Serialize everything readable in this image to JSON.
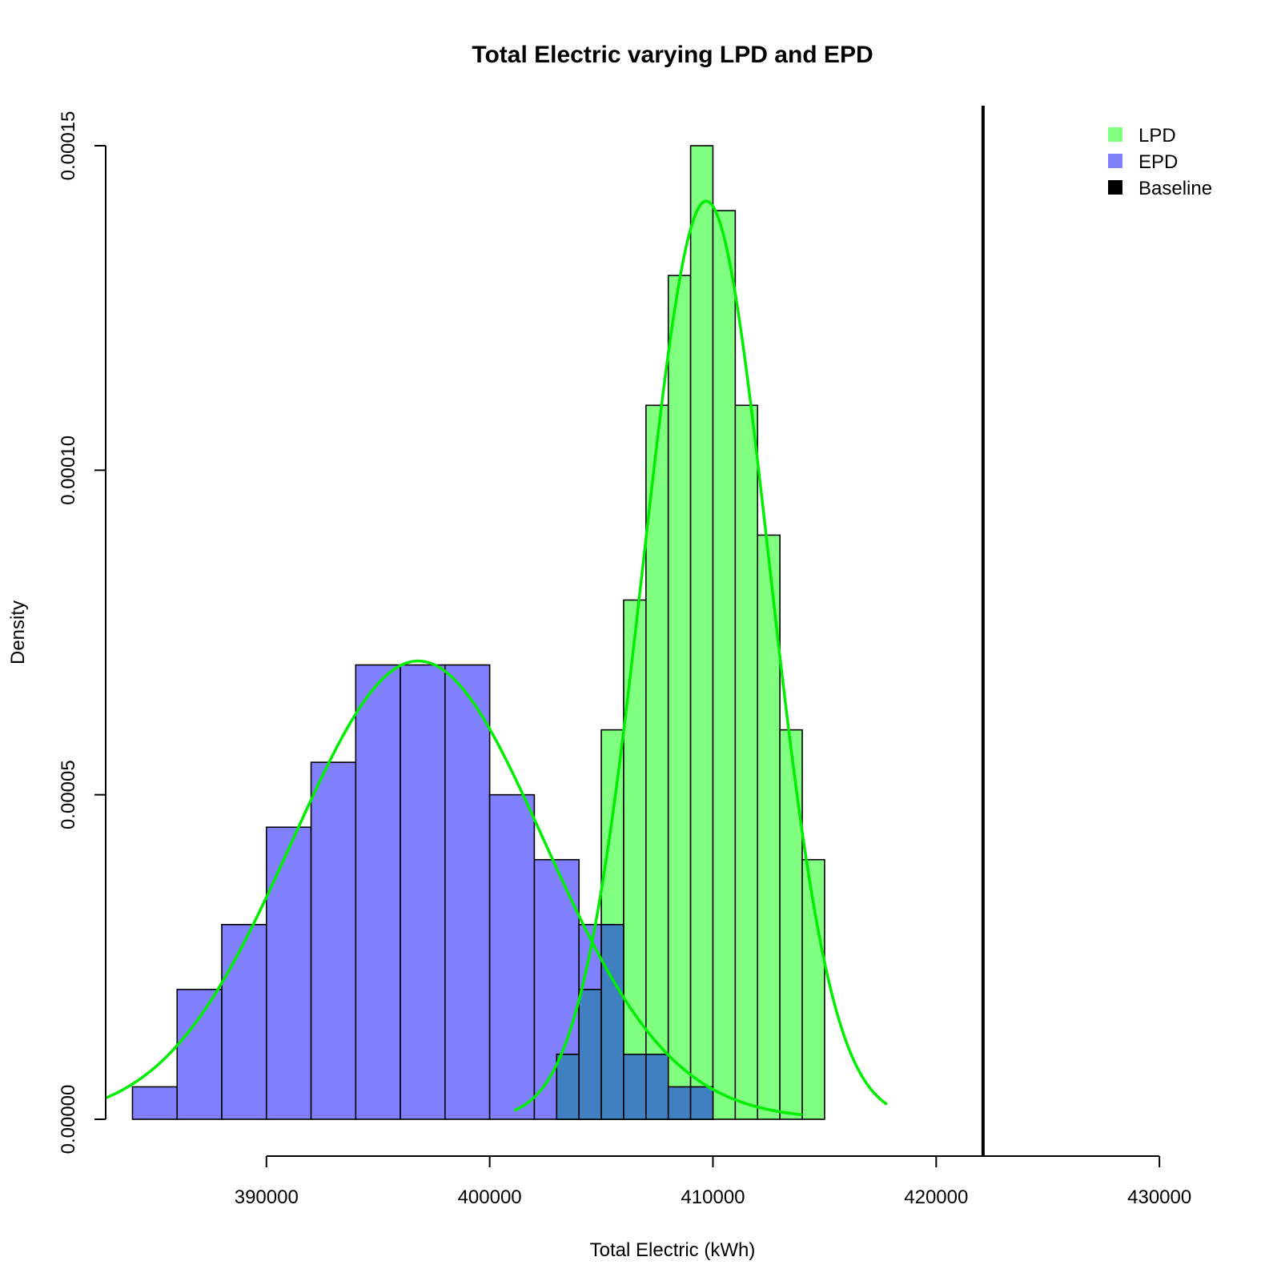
{
  "chart_data": {
    "type": "histogram",
    "title": "Total Electric varying LPD and EPD",
    "xlabel": "Total Electric (kWh)",
    "ylabel": "Density",
    "xlim": [
      382800,
      431500
    ],
    "ylim": [
      0,
      0.00015
    ],
    "x_ticks": [
      390000,
      400000,
      410000,
      420000,
      430000
    ],
    "x_tick_labels": [
      "390000",
      "400000",
      "410000",
      "420000",
      "430000"
    ],
    "y_ticks": [
      0,
      5e-05,
      0.0001,
      0.00015
    ],
    "y_tick_labels": [
      "0.00000",
      "0.00005",
      "0.00010",
      "0.00015"
    ],
    "bin_width": 2000,
    "series": [
      {
        "name": "EPD",
        "color": "#8080ff",
        "bins": [
          {
            "x0": 384000,
            "x1": 386000,
            "density": 5e-06
          },
          {
            "x0": 386000,
            "x1": 388000,
            "density": 2e-05
          },
          {
            "x0": 388000,
            "x1": 390000,
            "density": 3e-05
          },
          {
            "x0": 390000,
            "x1": 392000,
            "density": 4.5e-05
          },
          {
            "x0": 392000,
            "x1": 394000,
            "density": 5.5e-05
          },
          {
            "x0": 394000,
            "x1": 396000,
            "density": 7e-05
          },
          {
            "x0": 396000,
            "x1": 398000,
            "density": 7e-05
          },
          {
            "x0": 398000,
            "x1": 400000,
            "density": 7e-05
          },
          {
            "x0": 400000,
            "x1": 402000,
            "density": 5e-05
          },
          {
            "x0": 402000,
            "x1": 404000,
            "density": 4e-05
          },
          {
            "x0": 404000,
            "x1": 406000,
            "density": 3e-05
          },
          {
            "x0": 406000,
            "x1": 408000,
            "density": 1e-05
          },
          {
            "x0": 408000,
            "x1": 410000,
            "density": 5e-06
          }
        ]
      },
      {
        "name": "LPD",
        "color": "#80ff80",
        "bins": [
          {
            "x0": 403000,
            "x1": 404000,
            "density": 1e-05
          },
          {
            "x0": 404000,
            "x1": 405000,
            "density": 2e-05
          },
          {
            "x0": 405000,
            "x1": 406000,
            "density": 6e-05
          },
          {
            "x0": 406000,
            "x1": 407000,
            "density": 8e-05
          },
          {
            "x0": 407000,
            "x1": 408000,
            "density": 0.00011
          },
          {
            "x0": 408000,
            "x1": 409000,
            "density": 0.00013
          },
          {
            "x0": 409000,
            "x1": 410000,
            "density": 0.00015
          },
          {
            "x0": 410000,
            "x1": 411000,
            "density": 0.00014
          },
          {
            "x0": 411000,
            "x1": 412000,
            "density": 0.00011
          },
          {
            "x0": 412000,
            "x1": 413000,
            "density": 9e-05
          },
          {
            "x0": 413000,
            "x1": 414000,
            "density": 6e-05
          },
          {
            "x0": 414000,
            "x1": 415000,
            "density": 4e-05
          }
        ]
      }
    ],
    "overlap_color": "#4080c0",
    "density_curves": [
      {
        "for": "EPD",
        "color": "#00ee00",
        "mean": 396800,
        "sd": 5650,
        "x_range": [
          382800,
          414000
        ]
      },
      {
        "for": "LPD",
        "color": "#00ee00",
        "mean": 409700,
        "sd": 2820,
        "x_range": [
          401100,
          417800
        ]
      }
    ],
    "baseline": {
      "name": "Baseline",
      "x": 422100,
      "color": "#000000"
    },
    "legend": {
      "position": "top-right",
      "items": [
        {
          "label": "LPD",
          "color": "#80ff80"
        },
        {
          "label": "EPD",
          "color": "#8080ff"
        },
        {
          "label": "Baseline",
          "color": "#000000"
        }
      ]
    }
  }
}
